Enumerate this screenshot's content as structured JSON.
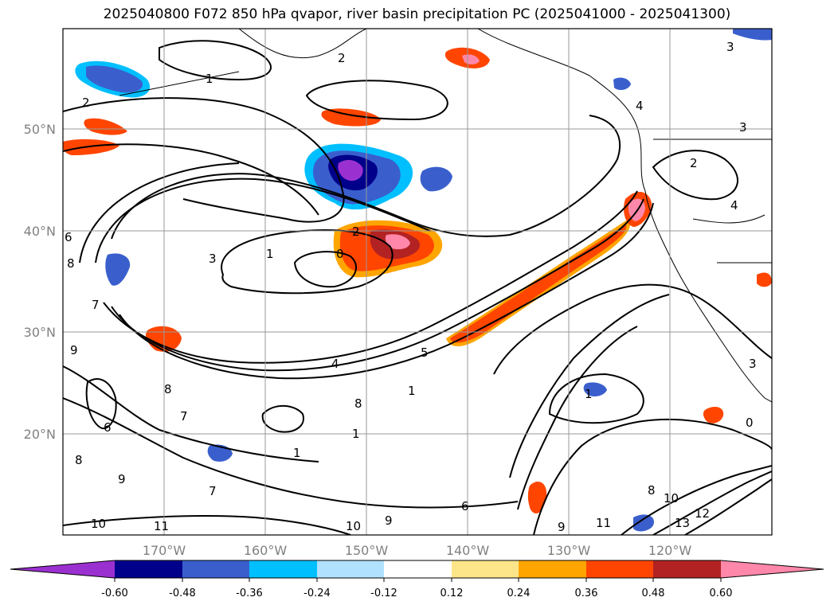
{
  "title": "2025040800 F072 850 hPa qvapor, river basin precipitation PC (2025041000 - 2025041300)",
  "lat_ticks": [
    "50°N",
    "40°N",
    "30°N",
    "20°N"
  ],
  "lon_ticks": [
    "170°W",
    "160°W",
    "150°W",
    "140°W",
    "130°W",
    "120°W"
  ],
  "colorbar": {
    "colors": [
      "#9b30d0",
      "#00008b",
      "#3a5fcd",
      "#00bfff",
      "#b0e2ff",
      "#ffffff",
      "#fde68a",
      "#ffa500",
      "#ff4500",
      "#b22222",
      "#ff88aa"
    ],
    "labels": [
      "-0.60",
      "-0.48",
      "-0.36",
      "-0.24",
      "-0.12",
      "0.12",
      "0.24",
      "0.36",
      "0.48",
      "0.60"
    ],
    "extend": "both"
  },
  "contour_labels": [
    {
      "text": "2"
    },
    {
      "text": "1"
    },
    {
      "text": "2"
    },
    {
      "text": "3"
    },
    {
      "text": "4"
    },
    {
      "text": "3"
    },
    {
      "text": "2"
    },
    {
      "text": "0"
    },
    {
      "text": "1"
    },
    {
      "text": "3"
    },
    {
      "text": "6"
    },
    {
      "text": "8"
    },
    {
      "text": "7"
    },
    {
      "text": "9"
    },
    {
      "text": "5"
    },
    {
      "text": "8"
    },
    {
      "text": "8"
    },
    {
      "text": "7"
    },
    {
      "text": "1"
    },
    {
      "text": "1"
    },
    {
      "text": "6"
    },
    {
      "text": "1"
    },
    {
      "text": "0"
    },
    {
      "text": "7"
    },
    {
      "text": "9"
    },
    {
      "text": "8"
    },
    {
      "text": "10"
    },
    {
      "text": "11"
    },
    {
      "text": "10"
    },
    {
      "text": "9"
    },
    {
      "text": "6"
    },
    {
      "text": "8"
    },
    {
      "text": "10"
    },
    {
      "text": "12"
    },
    {
      "text": "13"
    },
    {
      "text": "11"
    },
    {
      "text": "9"
    },
    {
      "text": "4"
    },
    {
      "text": "2"
    },
    {
      "text": "3"
    },
    {
      "text": "4"
    },
    {
      "text": "1"
    }
  ]
}
